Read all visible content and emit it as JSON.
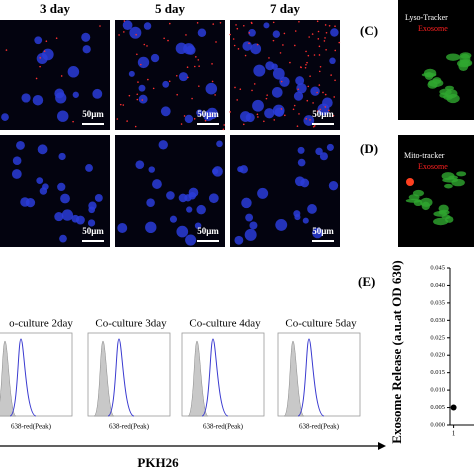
{
  "microscopy": {
    "columns": [
      "3 day",
      "5 day",
      "7 day"
    ],
    "scale_bar": "50μm"
  },
  "panel_c": {
    "label": "(C)",
    "stain": "Lyso-Tracker",
    "marker": "Exosome"
  },
  "panel_d": {
    "label": "(D)",
    "stain": "Mito-tracker",
    "marker": "Exosome"
  },
  "flow": {
    "titles": [
      "o-culture 2day",
      "Co-culture 3day",
      "Co-culture 4day",
      "Co-culture 5day"
    ],
    "x_label": "638-red(Peak)",
    "marker_label": "PKH26"
  },
  "panel_e": {
    "label": "(E)"
  },
  "chart_data": {
    "type": "line",
    "ylabel": "Exosome Release (a.u.at OD 630)",
    "x": [
      1
    ],
    "xlim": [
      0.8,
      1.3
    ],
    "xticks": [
      1
    ],
    "series": [
      {
        "color": "#000000",
        "values": [
          0.005
        ]
      }
    ],
    "ylim": [
      0,
      0.045
    ],
    "yticks": [
      {
        "value": 0,
        "label": "0.000"
      },
      0.005,
      {
        "value": 0.01,
        "label": "0.010"
      },
      0.015,
      {
        "value": 0.02,
        "label": "0.020"
      },
      0.025,
      {
        "value": 0.03,
        "label": "0.030"
      },
      0.035,
      {
        "value": 0.04,
        "label": "0.040"
      },
      0.045
    ]
  }
}
